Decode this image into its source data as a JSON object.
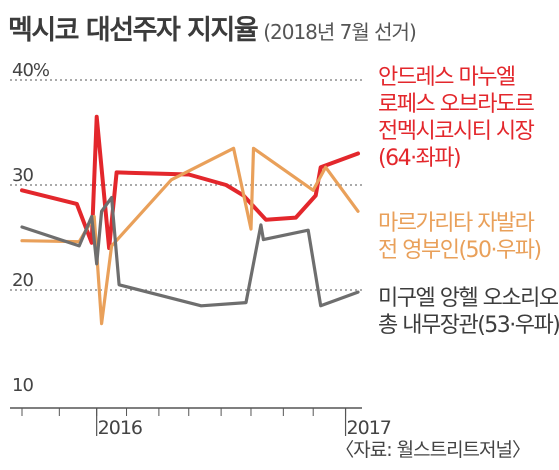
{
  "title": "멕시코 대선주자 지지율",
  "subtitle": "(2018년 7월 선거)",
  "source": "〈자료: 월스트리트저널〉",
  "colors": {
    "series1": "#e3272c",
    "series2": "#e9a05a",
    "series3": "#6e6e6e",
    "grid": "#777777",
    "axis": "#555555"
  },
  "chart_data": {
    "type": "line",
    "title": "멕시코 대선주자 지지율",
    "subtitle": "(2018년 7월 선거)",
    "y_ticks": [
      "40%",
      "30",
      "20",
      "10"
    ],
    "y_tick_values": [
      40,
      30,
      20,
      10
    ],
    "ylim": [
      10,
      40
    ],
    "xlim": [
      2015.7,
      2017.05
    ],
    "x_tick_labels": [
      "2016",
      "2017"
    ],
    "x_tick_values": [
      2016,
      2017
    ],
    "grid": true,
    "series": [
      {
        "name": "안드레스 마누엘 로페스 오브라도르 전멕시코시티 시장 (64·좌파)",
        "label_lines": [
          "안드레스 마누엘",
          "로페스 오브라도르",
          "전멕시코시티 시장",
          "(64·좌파)"
        ],
        "color_key": "series1",
        "points": [
          [
            2015.7,
            29.5
          ],
          [
            2015.92,
            28.2
          ],
          [
            2015.98,
            24.5
          ],
          [
            2016.0,
            36.5
          ],
          [
            2016.05,
            24.0
          ],
          [
            2016.08,
            31.2
          ],
          [
            2016.37,
            31.0
          ],
          [
            2016.52,
            30.0
          ],
          [
            2016.59,
            29.0
          ],
          [
            2016.68,
            26.7
          ],
          [
            2016.8,
            26.9
          ],
          [
            2016.88,
            29.0
          ],
          [
            2016.9,
            31.7
          ],
          [
            2017.05,
            33.0
          ]
        ]
      },
      {
        "name": "마르가리타 자발라 전 영부인(50·우파)",
        "label_lines": [
          "마르가리타 자발라",
          "전 영부인(50·우파)"
        ],
        "color_key": "series2",
        "points": [
          [
            2015.7,
            24.7
          ],
          [
            2015.93,
            24.6
          ],
          [
            2015.99,
            27.0
          ],
          [
            2016.02,
            16.8
          ],
          [
            2016.06,
            24.2
          ],
          [
            2016.3,
            30.5
          ],
          [
            2016.55,
            33.5
          ],
          [
            2016.62,
            25.8
          ],
          [
            2016.63,
            33.5
          ],
          [
            2016.87,
            29.5
          ],
          [
            2016.92,
            31.7
          ],
          [
            2017.05,
            27.5
          ]
        ]
      },
      {
        "name": "미구엘 앙헬 오소리오 총 내무장관(53·우파)",
        "label_lines": [
          "미구엘 앙헬 오소리오",
          "총 내무장관(53·우파)"
        ],
        "color_key": "series3",
        "points": [
          [
            2015.7,
            26.0
          ],
          [
            2015.93,
            24.2
          ],
          [
            2015.98,
            27.0
          ],
          [
            2016.0,
            22.5
          ],
          [
            2016.02,
            27.5
          ],
          [
            2016.06,
            28.8
          ],
          [
            2016.09,
            20.5
          ],
          [
            2016.42,
            18.5
          ],
          [
            2016.6,
            18.8
          ],
          [
            2016.66,
            26.2
          ],
          [
            2016.67,
            24.8
          ],
          [
            2016.85,
            25.7
          ],
          [
            2016.9,
            18.5
          ],
          [
            2017.05,
            19.8
          ]
        ]
      }
    ]
  }
}
